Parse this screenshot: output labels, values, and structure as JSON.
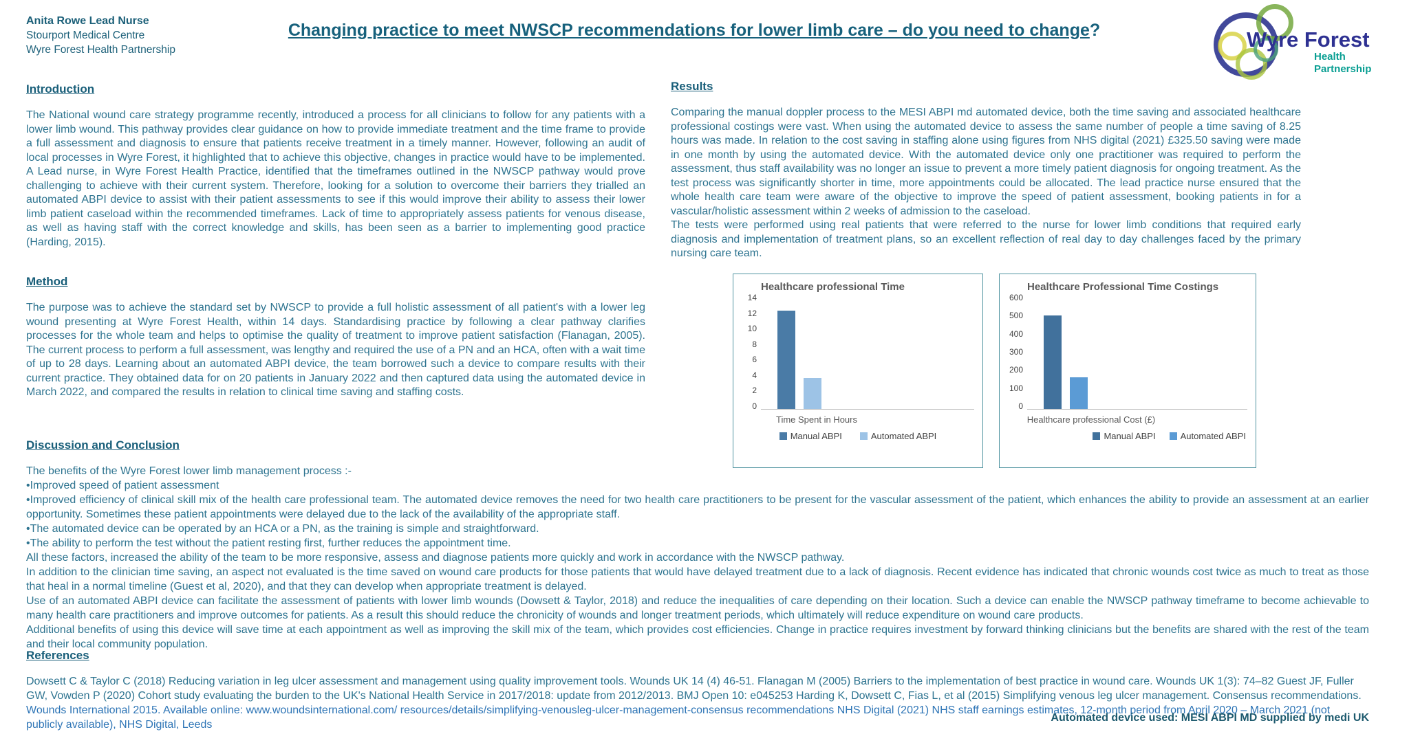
{
  "header": {
    "author_line1": "Anita Rowe Lead Nurse",
    "author_line2": "Stourport Medical Centre",
    "author_line3": "Wyre Forest Health Partnership",
    "title_underlined": "Changing practice to meet NWSCP recommendations for lower limb care – do you need to change",
    "title_suffix": "?",
    "logo": {
      "name": "Wyre Forest",
      "sub1": "Health",
      "sub2": "Partnership",
      "navy": "#2e3192",
      "teal": "#089e92"
    }
  },
  "sections": {
    "introduction": {
      "heading": "Introduction",
      "body": "The National wound care strategy programme recently, introduced a process for all clinicians to follow for any patients with a lower limb wound.  This pathway provides clear guidance on how to provide immediate treatment and the time frame to provide a full assessment and diagnosis to ensure that patients receive treatment in a timely manner. However, following an audit of local processes in Wyre Forest, it highlighted that to achieve this objective, changes in practice would have to be implemented.  A Lead nurse, in Wyre Forest Health Practice, identified that the timeframes outlined in the NWSCP pathway would prove challenging to achieve with their current system.  Therefore, looking for a solution to overcome their barriers they trialled an automated ABPI device to assist with their patient assessments to see if this would improve their ability to assess their lower limb patient caseload within the recommended timeframes. Lack of time to appropriately assess patients for venous disease, as well as having staff with the correct knowledge and skills, has been seen as a barrier to implementing good practice (Harding, 2015)."
    },
    "method": {
      "heading": "Method",
      "body": "The purpose was to achieve the standard set by NWSCP to provide a full holistic assessment of all patient's with a lower leg wound presenting at Wyre Forest Health, within 14 days.  Standardising practice by following a clear pathway clarifies processes for the whole team and helps to optimise the quality of treatment to improve patient satisfaction (Flanagan, 2005). The current process to perform a full assessment, was lengthy and required the use of a PN and an HCA, often with a wait time of up to 28 days.  Learning about an automated ABPI device, the team borrowed such a device  to compare results with their current practice. They obtained data for on 20 patients in January 2022 and then captured data using the automated device in March 2022, and compared the results in relation to clinical time saving and staffing costs."
    },
    "results": {
      "heading": "Results",
      "para1": "Comparing the manual doppler process to the MESI ABPI md automated device, both the time saving and associated healthcare professional costings were vast. When using the automated device to assess the same number of people a time saving of 8.25 hours was made. In relation to the cost saving in staffing alone using figures from NHS digital (2021) £325.50 saving were made in one month by using the automated device. With the automated device only one practitioner was required to perform the assessment, thus staff availability was no longer an issue to prevent a more timely patient diagnosis for ongoing treatment. As the test process was significantly shorter in time, more appointments could be allocated. The lead practice nurse ensured that the whole health care team were aware of the objective to improve the speed of patient assessment, booking patients in for a vascular/holistic assessment within 2 weeks of admission to the caseload.",
      "para2": "The tests were performed using real patients that were referred to the nurse for lower limb conditions that required early diagnosis and implementation of treatment plans, so an excellent reflection of real day to day challenges faced by the primary nursing care team."
    },
    "discussion": {
      "heading": "Discussion and Conclusion",
      "lines": [
        "The benefits of the Wyre Forest lower limb management process :-",
        "•Improved speed of patient assessment",
        "•Improved efficiency of clinical skill mix of the health care professional team. The automated device removes the need for two health care practitioners to be present for the vascular assessment of the patient, which enhances the ability to provide an assessment at an earlier opportunity. Sometimes these patient appointments were delayed due to the lack of the availability of the appropriate staff.",
        "•The automated device can be operated by an HCA or a PN, as the training is simple and straightforward.",
        "•The ability to perform the test without the patient resting first, further reduces the appointment time.",
        "All these factors, increased the ability of the team to be more responsive, assess and diagnose patients more quickly and work in accordance with the NWSCP pathway.",
        "In addition to the clinician time saving, an aspect not evaluated is the time saved on wound care products for those patients that would have delayed treatment due to a lack of diagnosis. Recent evidence has indicated that chronic wounds cost twice as much to treat as those that heal in a normal timeline (Guest et al, 2020), and that they can develop when appropriate treatment is delayed.",
        "Use of an automated ABPI device can facilitate the assessment of patients with lower limb wounds (Dowsett & Taylor, 2018) and reduce the inequalities of care depending on their location. Such a device can enable the NWSCP pathway timeframe to become achievable to many health care practitioners and improve outcomes for patients. As a result this should reduce the chronicity of wounds and longer treatment periods, which ultimately will reduce expenditure on wound care products.",
        "Additional benefits of using this device will save time at each appointment as well as improving the skill mix of the team, which provides cost efficiencies. Change in practice requires investment by forward thinking clinicians but the benefits are shared with the rest of the team and their local community population."
      ]
    },
    "references": {
      "heading": "References",
      "text_dark": "Dowsett C & Taylor C (2018) Reducing variation in leg ulcer assessment and management using quality improvement tools. Wounds UK 14 (4) 46-51.  Flanagan M (2005) Barriers to the implementation of best practice in wound care. Wounds UK 1(3): 74–82  Guest JF, Fuller GW, Vowden P (2020) Cohort study evaluating the burden to the UK's National Health Service in 2017/2018: update from 2012/2013. BMJ Open 10: e045253 Harding K, Dowsett C, Fias L, et al (2015) Simplifying venous leg ulcer management. Consensus recommendations. ",
      "text_link": "Wounds International 2015. Available online: www.woundsinternational.com/ resources/details/simplifying-venousleg-ulcer-management-consensus recommendations NHS Digital (2021) NHS staff earnings estimates, 12-month period from April 2020 – March 2021 (not publicly available), NHS Digital, Leeds"
    },
    "footer_note": "Automated device used: MESI ABPI MD supplied by medi UK"
  },
  "chart_data": [
    {
      "type": "bar",
      "title": "Healthcare professional Time",
      "categories": [
        "Time Spent in Hours"
      ],
      "series": [
        {
          "name": "Manual ABPI",
          "values": [
            12
          ],
          "color": "#4a7ba6"
        },
        {
          "name": "Automated ABPI",
          "values": [
            3.75
          ],
          "color": "#9dc3e6"
        }
      ],
      "xlabel": "Time Spent in Hours",
      "ylabel": "",
      "ylim": [
        0,
        14
      ],
      "yticks": [
        0,
        2,
        4,
        6,
        8,
        10,
        12,
        14
      ],
      "legend_position": "bottom",
      "grid": false
    },
    {
      "type": "bar",
      "title": "Healthcare Professional Time Costings",
      "categories": [
        "Healthcare professional Cost (£)"
      ],
      "series": [
        {
          "name": "Manual ABPI",
          "values": [
            490
          ],
          "color": "#41719c"
        },
        {
          "name": "Automated ABPI",
          "values": [
            165
          ],
          "color": "#5b9bd5"
        }
      ],
      "xlabel": "Healthcare professional Cost (£)",
      "ylabel": "",
      "ylim": [
        0,
        600
      ],
      "yticks": [
        0,
        100,
        200,
        300,
        400,
        500,
        600
      ],
      "legend_position": "bottom-right",
      "grid": false
    }
  ],
  "colors": {
    "heading": "#185e79",
    "body_text": "#2e7490",
    "title": "#17617c",
    "reference_link": "#2e75b6",
    "chart_border": "#4f93a0",
    "chart_text": "#595959"
  }
}
